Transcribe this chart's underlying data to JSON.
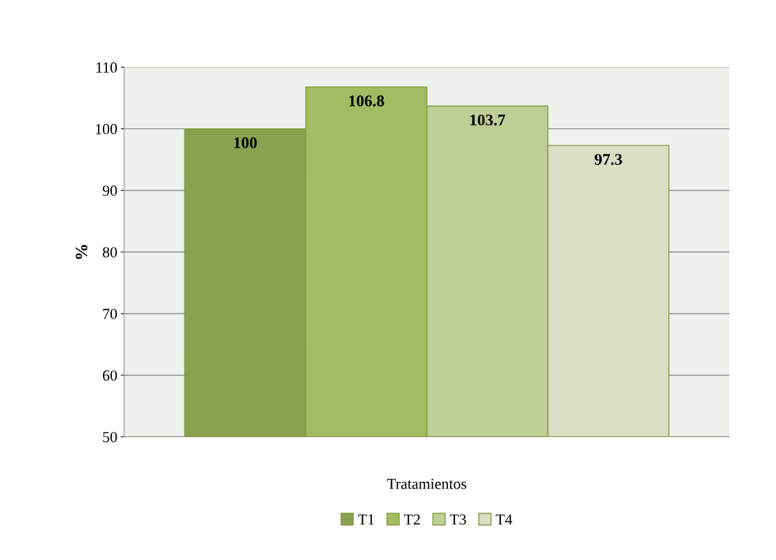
{
  "chart_data": {
    "type": "bar",
    "xlabel": "Tratamientos",
    "ylabel": "%",
    "categories": [
      null
    ],
    "series": [
      {
        "name": "T1",
        "color": "#8aa150",
        "values": [
          100
        ]
      },
      {
        "name": "T2",
        "color": "#a3bb63",
        "values": [
          106.8
        ]
      },
      {
        "name": "T3",
        "color": "#bfcd96",
        "values": [
          103.7
        ]
      },
      {
        "name": "T4",
        "color": "#d8dfc5",
        "values": [
          97.3
        ]
      }
    ],
    "ylim": [
      50,
      110
    ],
    "yticks": [
      50,
      60,
      70,
      80,
      90,
      100,
      110
    ],
    "grid": "y",
    "legend": "bottom",
    "data_labels": true
  }
}
